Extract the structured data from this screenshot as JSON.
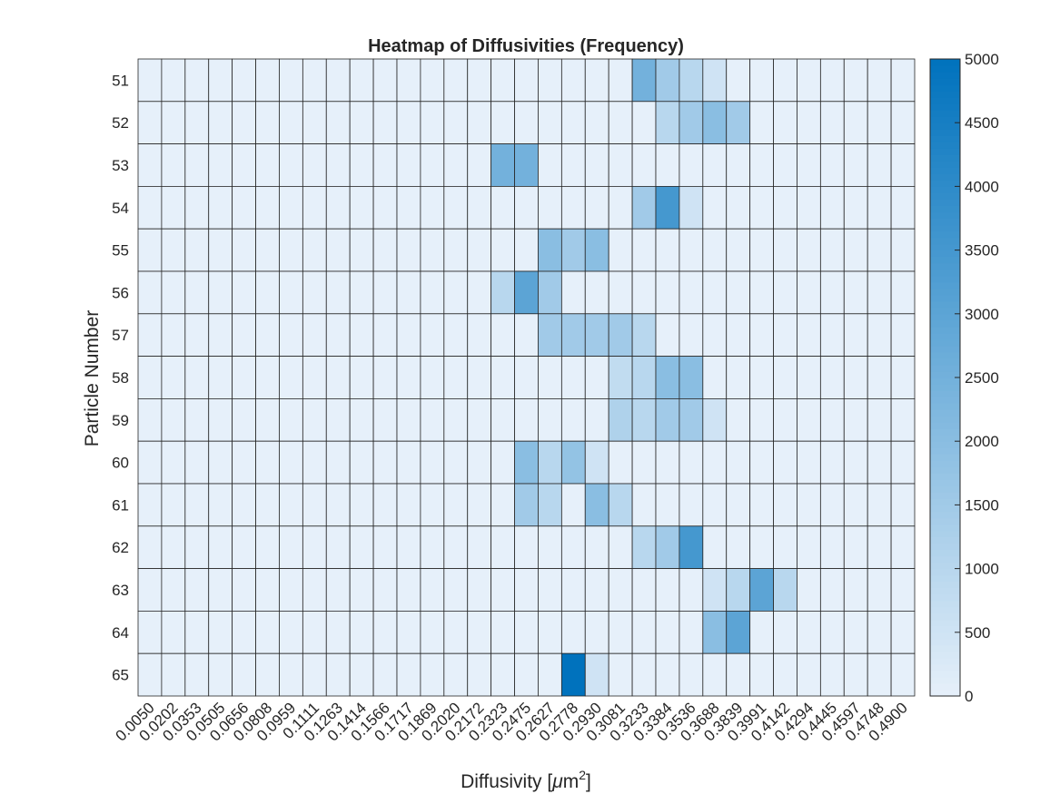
{
  "chart_data": {
    "type": "heatmap",
    "title": "Heatmap of Diffusivities (Frequency)",
    "xlabel": "Diffusivity [",
    "xlabel_mu": "μ",
    "xlabel_unit": "m",
    "xlabel_exp": "2",
    "xlabel_close": "]",
    "ylabel": "Particle Number",
    "x_categories": [
      "0.0050",
      "0.0202",
      "0.0353",
      "0.0505",
      "0.0656",
      "0.0808",
      "0.0959",
      "0.1111",
      "0.1263",
      "0.1414",
      "0.1566",
      "0.1717",
      "0.1869",
      "0.2020",
      "0.2172",
      "0.2323",
      "0.2475",
      "0.2627",
      "0.2778",
      "0.2930",
      "0.3081",
      "0.3233",
      "0.3384",
      "0.3536",
      "0.3688",
      "0.3839",
      "0.3991",
      "0.4142",
      "0.4294",
      "0.4445",
      "0.4597",
      "0.4748",
      "0.4900"
    ],
    "y_categories": [
      "51",
      "52",
      "53",
      "54",
      "55",
      "56",
      "57",
      "58",
      "59",
      "60",
      "61",
      "62",
      "63",
      "64",
      "65"
    ],
    "values": [
      [
        0,
        0,
        0,
        0,
        0,
        0,
        0,
        0,
        0,
        0,
        0,
        0,
        0,
        0,
        0,
        0,
        0,
        0,
        0,
        0,
        0,
        2500,
        1500,
        1000,
        500,
        0,
        0,
        0,
        0,
        0,
        0,
        0,
        0
      ],
      [
        0,
        0,
        0,
        0,
        0,
        0,
        0,
        0,
        0,
        0,
        0,
        0,
        0,
        0,
        0,
        0,
        0,
        0,
        0,
        0,
        0,
        0,
        1000,
        1500,
        2000,
        1500,
        0,
        0,
        0,
        0,
        0,
        0,
        0
      ],
      [
        0,
        0,
        0,
        0,
        0,
        0,
        0,
        0,
        0,
        0,
        0,
        0,
        0,
        0,
        0,
        2500,
        2500,
        0,
        0,
        0,
        0,
        0,
        0,
        0,
        0,
        0,
        0,
        0,
        0,
        0,
        0,
        0,
        0
      ],
      [
        0,
        0,
        0,
        0,
        0,
        0,
        0,
        0,
        0,
        0,
        0,
        0,
        0,
        0,
        0,
        0,
        0,
        0,
        0,
        0,
        0,
        1500,
        3500,
        500,
        0,
        0,
        0,
        0,
        0,
        0,
        0,
        0,
        0
      ],
      [
        0,
        0,
        0,
        0,
        0,
        0,
        0,
        0,
        0,
        0,
        0,
        0,
        0,
        0,
        0,
        0,
        0,
        2000,
        1500,
        2000,
        0,
        0,
        0,
        0,
        0,
        0,
        0,
        0,
        0,
        0,
        0,
        0,
        0
      ],
      [
        0,
        0,
        0,
        0,
        0,
        0,
        0,
        0,
        0,
        0,
        0,
        0,
        0,
        0,
        0,
        1000,
        3000,
        1500,
        0,
        0,
        0,
        0,
        0,
        0,
        0,
        0,
        0,
        0,
        0,
        0,
        0,
        0,
        0
      ],
      [
        0,
        0,
        0,
        0,
        0,
        0,
        0,
        0,
        0,
        0,
        0,
        0,
        0,
        0,
        0,
        0,
        0,
        1500,
        1500,
        1500,
        1500,
        1000,
        0,
        0,
        0,
        0,
        0,
        0,
        0,
        0,
        0,
        0,
        0
      ],
      [
        0,
        0,
        0,
        0,
        0,
        0,
        0,
        0,
        0,
        0,
        0,
        0,
        0,
        0,
        0,
        0,
        0,
        0,
        0,
        0,
        800,
        1000,
        2000,
        2000,
        0,
        0,
        0,
        0,
        0,
        0,
        0,
        0,
        0
      ],
      [
        0,
        0,
        0,
        0,
        0,
        0,
        0,
        0,
        0,
        0,
        0,
        0,
        0,
        0,
        0,
        0,
        0,
        0,
        0,
        0,
        1200,
        1000,
        1500,
        1500,
        500,
        0,
        0,
        0,
        0,
        0,
        0,
        0,
        0
      ],
      [
        0,
        0,
        0,
        0,
        0,
        0,
        0,
        0,
        0,
        0,
        0,
        0,
        0,
        0,
        0,
        0,
        2000,
        1000,
        1800,
        500,
        0,
        0,
        0,
        0,
        0,
        0,
        0,
        0,
        0,
        0,
        0,
        0,
        0
      ],
      [
        0,
        0,
        0,
        0,
        0,
        0,
        0,
        0,
        0,
        0,
        0,
        0,
        0,
        0,
        0,
        0,
        1500,
        1000,
        0,
        2000,
        1000,
        0,
        0,
        0,
        0,
        0,
        0,
        0,
        0,
        0,
        0,
        0,
        0
      ],
      [
        0,
        0,
        0,
        0,
        0,
        0,
        0,
        0,
        0,
        0,
        0,
        0,
        0,
        0,
        0,
        0,
        0,
        0,
        0,
        0,
        0,
        1000,
        1500,
        3500,
        0,
        0,
        0,
        0,
        0,
        0,
        0,
        0,
        0
      ],
      [
        0,
        0,
        0,
        0,
        0,
        0,
        0,
        0,
        0,
        0,
        0,
        0,
        0,
        0,
        0,
        0,
        0,
        0,
        0,
        0,
        0,
        0,
        0,
        0,
        500,
        1000,
        3000,
        1000,
        0,
        0,
        0,
        0,
        0
      ],
      [
        0,
        0,
        0,
        0,
        0,
        0,
        0,
        0,
        0,
        0,
        0,
        0,
        0,
        0,
        0,
        0,
        0,
        0,
        0,
        0,
        0,
        0,
        0,
        0,
        2000,
        3000,
        0,
        0,
        0,
        0,
        0,
        0,
        0
      ],
      [
        0,
        0,
        0,
        0,
        0,
        0,
        0,
        0,
        0,
        0,
        0,
        0,
        0,
        0,
        0,
        0,
        0,
        0,
        5000,
        500,
        0,
        0,
        0,
        0,
        0,
        0,
        0,
        0,
        0,
        0,
        0,
        0,
        0
      ]
    ],
    "colorbar": {
      "range": [
        0,
        5000
      ],
      "ticks": [
        "0",
        "500",
        "1000",
        "1500",
        "2000",
        "2500",
        "3000",
        "3500",
        "4000",
        "4500",
        "5000"
      ],
      "color_low": "#e6f0fa",
      "color_high": "#0072bd"
    },
    "grid": true,
    "legend": "colorbar-right"
  }
}
